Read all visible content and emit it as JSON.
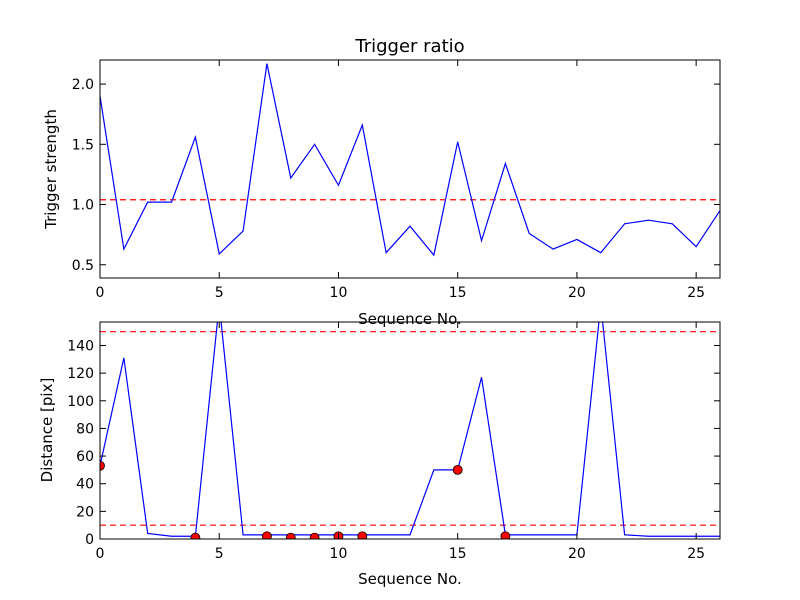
{
  "chart_data": [
    {
      "type": "line",
      "title": "Trigger ratio",
      "xlabel": "Sequence No.",
      "ylabel": "Trigger strength",
      "xlim": [
        0,
        26
      ],
      "ylim": [
        0.39,
        2.2
      ],
      "xticks": [
        0,
        5,
        10,
        15,
        20,
        25
      ],
      "yticks": [
        0.5,
        1.0,
        1.5,
        2.0
      ],
      "ytick_labels": [
        "0.5",
        "1.0",
        "1.5",
        "2.0"
      ],
      "series": [
        {
          "color": "#0000ff",
          "x": [
            0,
            1,
            2,
            3,
            4,
            5,
            6,
            7,
            8,
            9,
            10,
            11,
            12,
            13,
            14,
            15,
            16,
            17,
            18,
            19,
            20,
            21,
            22,
            23,
            24,
            25,
            26
          ],
          "y": [
            1.9,
            0.63,
            1.02,
            1.02,
            1.56,
            0.59,
            0.78,
            2.17,
            1.22,
            1.5,
            1.16,
            1.66,
            0.6,
            0.82,
            0.58,
            1.52,
            0.7,
            1.34,
            0.76,
            0.63,
            0.71,
            0.6,
            0.84,
            0.87,
            0.84,
            0.65,
            0.95
          ]
        }
      ],
      "reference_lines": [
        {
          "y": 1.04,
          "color": "#ff0000",
          "style": "dashed"
        }
      ]
    },
    {
      "type": "line",
      "title": "",
      "xlabel": "Sequence No.",
      "ylabel": "Distance [pix]",
      "xlim": [
        0,
        26
      ],
      "ylim": [
        0,
        157
      ],
      "xticks": [
        0,
        5,
        10,
        15,
        20,
        25
      ],
      "yticks": [
        0,
        20,
        40,
        60,
        80,
        100,
        120,
        140
      ],
      "ytick_labels": [
        "0",
        "20",
        "40",
        "60",
        "80",
        "100",
        "120",
        "140"
      ],
      "series": [
        {
          "color": "#0000ff",
          "x": [
            0,
            1,
            2,
            3,
            4,
            5,
            6,
            7,
            8,
            9,
            10,
            11,
            12,
            13,
            14,
            15,
            16,
            17,
            18,
            19,
            20,
            21,
            22,
            23,
            24,
            25,
            26
          ],
          "y": [
            53,
            131,
            4,
            2,
            2,
            170,
            3,
            3,
            3,
            3,
            3,
            3,
            3,
            3,
            50,
            50,
            117,
            3,
            3,
            3,
            3,
            170,
            3,
            2,
            2,
            2,
            2
          ]
        }
      ],
      "markers": {
        "color": "#ff0000",
        "x": [
          0,
          4,
          7,
          8,
          9,
          10,
          11,
          15,
          17
        ],
        "y": [
          53,
          1,
          2,
          1,
          1,
          2,
          2,
          50,
          2
        ]
      },
      "reference_lines": [
        {
          "y": 150,
          "color": "#ff0000",
          "style": "dashed"
        },
        {
          "y": 10,
          "color": "#ff0000",
          "style": "dashed"
        }
      ]
    }
  ]
}
